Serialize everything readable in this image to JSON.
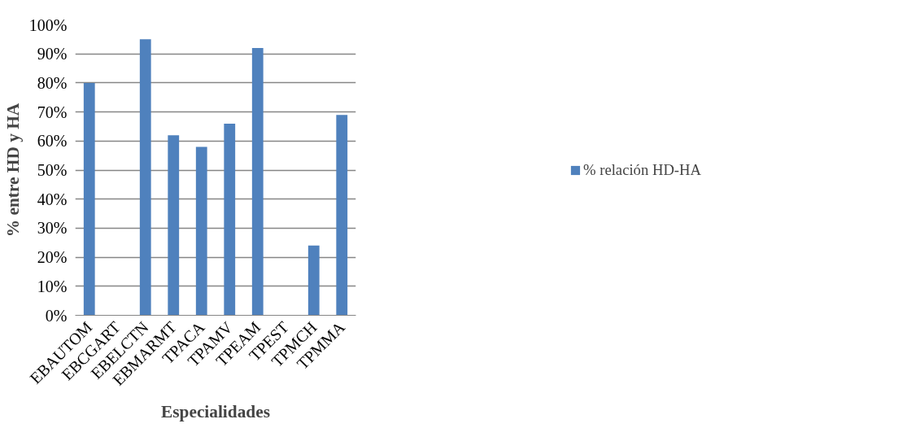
{
  "chart_data": {
    "type": "bar",
    "xlabel": "Especialidades",
    "ylabel": "% entre HD y HA",
    "categories": [
      "EBAUTOM",
      "EBCGART",
      "EBELCTN",
      "EBMARMT",
      "TPACA",
      "TPAMV",
      "TPEAM",
      "TPEST",
      "TPMCH",
      "TPMMA"
    ],
    "series": [
      {
        "name": "% relación HD-HA",
        "color": "#4f81bd",
        "values": [
          80,
          null,
          95,
          62,
          58,
          66,
          92,
          null,
          24,
          69
        ]
      }
    ],
    "ylim": [
      0,
      100
    ],
    "yticks": [
      {
        "value": 0,
        "label": "0%"
      },
      {
        "value": 10,
        "label": "10%"
      },
      {
        "value": 20,
        "label": "20%"
      },
      {
        "value": 30,
        "label": "30%"
      },
      {
        "value": 40,
        "label": "40%"
      },
      {
        "value": 50,
        "label": "50%"
      },
      {
        "value": 60,
        "label": "60%"
      },
      {
        "value": 70,
        "label": "70%"
      },
      {
        "value": 80,
        "label": "80%"
      },
      {
        "value": 90,
        "label": "90%"
      },
      {
        "value": 100,
        "label": "100%"
      }
    ],
    "grid": "y",
    "legend": "right"
  }
}
